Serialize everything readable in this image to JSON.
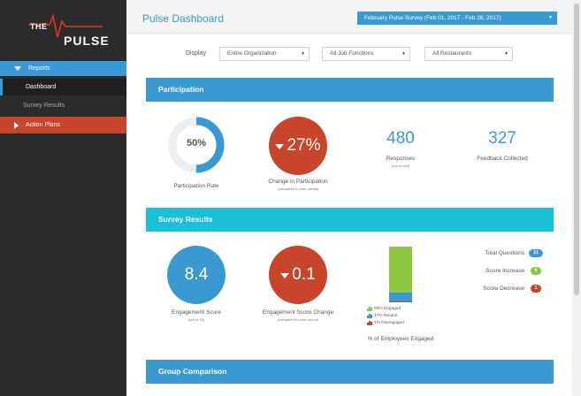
{
  "app": {
    "logo_top": "THE",
    "logo_bottom": "PULSE"
  },
  "sidebar": {
    "items": [
      {
        "label": "Reports"
      },
      {
        "label": "Dashboard"
      },
      {
        "label": "Survey Results"
      },
      {
        "label": "Action Plans"
      }
    ]
  },
  "header": {
    "title": "Pulse Dashboard",
    "period": "February Pulse Survey (Feb 01, 2017 - Feb 28, 2017)"
  },
  "filters": {
    "display_label": "Display",
    "organization": "Entire Organization",
    "job_functions": "All Job Functions",
    "restaurants": "All Restaurants"
  },
  "participation": {
    "section_title": "Participation",
    "rate_value": "50%",
    "rate_fraction": 0.5,
    "rate_label": "Participation Rate",
    "change_value": "27%",
    "change_label": "Change in Participation",
    "change_sub": "(compared to prior period)",
    "responses_value": "480",
    "responses_label": "Responses",
    "responses_sub": "(out of ###)",
    "feedback_value": "327",
    "feedback_label": "Feedback Collected"
  },
  "survey": {
    "section_title": "Survey Results",
    "engagement_value": "8.4",
    "engagement_label": "Engagement Score",
    "engagement_sub": "(out of 10)",
    "change_value": "0.1",
    "change_label": "Engagement Score Change",
    "change_sub": "(compared to prior period)",
    "stack_label": "% of Employees Engaged",
    "stack": [
      {
        "label": "83% Engaged",
        "value": 83,
        "color": "#8dc63f"
      },
      {
        "label": "17% Neutral",
        "value": 17,
        "color": "#3a99d0"
      },
      {
        "label": "1% Disengaged",
        "value": 1,
        "color": "#c8452c"
      }
    ],
    "kpis": [
      {
        "label": "Total Questions",
        "value": "11",
        "color": "#3a99d0"
      },
      {
        "label": "Score Increase",
        "value": "6",
        "color": "#8dc63f"
      },
      {
        "label": "Score Decrease",
        "value": "1",
        "color": "#c8452c"
      }
    ]
  },
  "group": {
    "section_title": "Group Comparison"
  },
  "colors": {
    "accent": "#3a99d0",
    "cyan": "#1cc0d6",
    "red": "#c8452c",
    "green": "#8dc63f",
    "sidebar": "#2b2b2b"
  }
}
